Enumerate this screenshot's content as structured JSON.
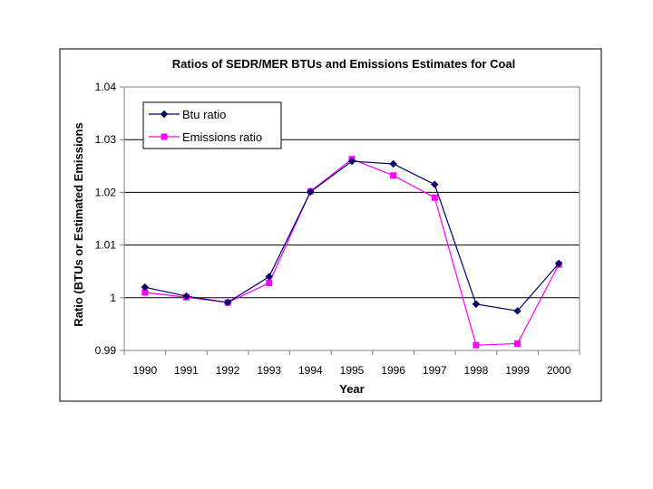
{
  "chart_data": {
    "type": "line",
    "title": "Ratios of SEDR/MER BTUs and Emissions Estimates for Coal",
    "xlabel": "Year",
    "ylabel": "Ratio (BTUs or Estimated Emissions",
    "categories": [
      "1990",
      "1991",
      "1992",
      "1993",
      "1994",
      "1995",
      "1996",
      "1997",
      "1998",
      "1999",
      "2000"
    ],
    "ylim": [
      0.99,
      1.04
    ],
    "yticks": [
      0.99,
      1,
      1.01,
      1.02,
      1.03,
      1.04
    ],
    "ytick_labels": [
      "0.99",
      "1",
      "1.01",
      "1.02",
      "1.03",
      "1.04"
    ],
    "grid": "horizontal",
    "legend_position": "top-left",
    "series": [
      {
        "name": "Btu ratio",
        "color": "#000066",
        "marker": "diamond",
        "values": [
          1.002,
          1.0003,
          0.9991,
          1.004,
          1.0201,
          1.0259,
          1.0254,
          1.0215,
          0.9988,
          0.9975,
          1.0065
        ]
      },
      {
        "name": "Emissions ratio",
        "color": "#FF00FF",
        "marker": "square",
        "values": [
          1.001,
          1.0001,
          0.9991,
          1.0028,
          1.0202,
          1.0263,
          1.0232,
          1.019,
          0.991,
          0.9913,
          1.0063
        ]
      }
    ]
  }
}
